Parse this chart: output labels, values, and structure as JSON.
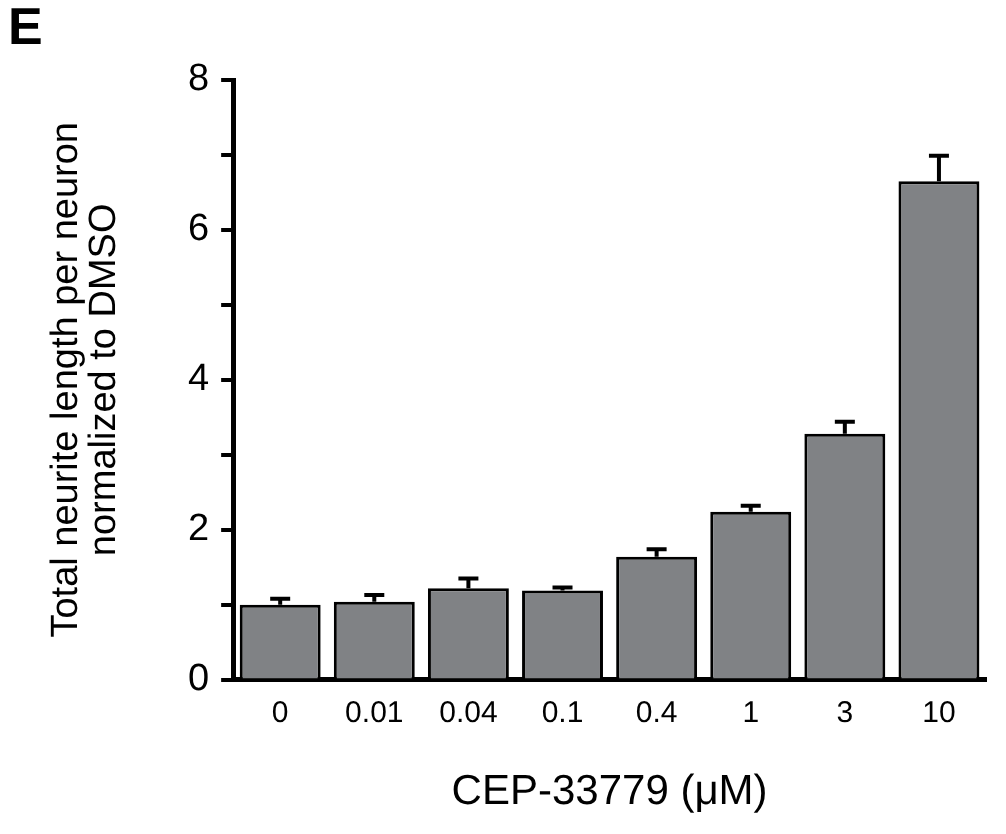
{
  "chart_data": {
    "type": "bar",
    "xlabel": "CEP-33779 (μM)",
    "ylabel": "Total neurite length per neuron\nnormalized to DMSO",
    "annotations": [
      "E"
    ],
    "categories": [
      "0",
      "0.01",
      "0.04",
      "0.1",
      "0.4",
      "1",
      "3",
      "10"
    ],
    "values": [
      1.0,
      1.04,
      1.22,
      1.19,
      1.64,
      2.24,
      3.28,
      6.65
    ],
    "errors": [
      0.08,
      0.09,
      0.13,
      0.04,
      0.1,
      0.08,
      0.16,
      0.34
    ],
    "color": "#808285",
    "ylim": [
      0,
      8
    ],
    "yticks": [
      0,
      {
        "value": 1,
        "label": null
      },
      2,
      {
        "value": 3,
        "label": null
      },
      4,
      {
        "value": 5,
        "label": null
      },
      6,
      {
        "value": 7,
        "label": null
      },
      8
    ],
    "grid": false,
    "legend": false
  }
}
